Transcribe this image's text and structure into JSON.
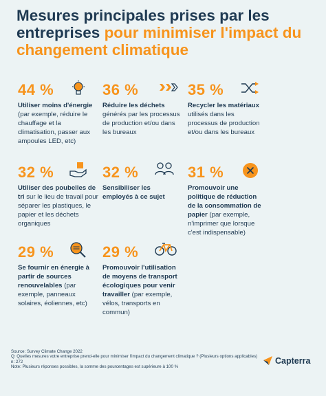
{
  "title": {
    "line1": "Mesures  principales prises par les",
    "line2_plain": "entreprises ",
    "line2_accent": "pour minimiser l'impact du",
    "line3_accent": "changement climatique"
  },
  "stats": [
    {
      "pct": "44 %",
      "icon": "light-bulb-icon",
      "bold": "Utiliser moins d'énergie",
      "rest": " (par exemple, réduire le chauffage et la climatisation, passer aux ampoules LED, etc)"
    },
    {
      "pct": "36 %",
      "icon": "arrows-forward-icon",
      "bold": "Réduire les déchets",
      "rest": " générés par les processus de production et/ou dans les bureaux"
    },
    {
      "pct": "35 %",
      "icon": "shuffle-icon",
      "bold": "Recycler les matériaux",
      "rest": " utilisés dans les processus de production et/ou dans les bureaux"
    },
    {
      "pct": "32 %",
      "icon": "hand-box-icon",
      "bold": "Utiliser des poubelles de tri",
      "rest": " sur le lieu de travail pour séparer les plastiques, le papier et les déchets organiques"
    },
    {
      "pct": "32 %",
      "icon": "people-icon",
      "bold": "Sensibiliser les employés à ce sujet",
      "rest": ""
    },
    {
      "pct": "31 %",
      "icon": "cancel-circle-icon",
      "bold": "Promouvoir une politique de réduction de la consommation de papier",
      "rest": " (par exemple, n'imprimer que lorsque c'est indispensable)"
    },
    {
      "pct": "29 %",
      "icon": "magnifier-icon",
      "bold": "Se fournir en énergie à partir de sources renouvelables",
      "rest": " (par exemple, panneaux solaires, éoliennes, etc)"
    },
    {
      "pct": "29 %",
      "icon": "bicycle-icon",
      "bold": "Promouvoir l'utilisation de moyens de transport écologiques pour venir travailler",
      "rest": " (par exemple, vélos, transports en commun)"
    }
  ],
  "footer": {
    "source": "Source: Survey Climate Change 2022",
    "question": "Q: Quelles mesures votre entreprise prend-elle pour minimiser l'impact du changement climatique ? (Plusieurs options applicables)",
    "n": "n: 272",
    "note": "Note: Plusieurs réponses possibles, la somme des pourcentages est supérieure à 100 %"
  },
  "brand": {
    "name": "Capterra"
  },
  "colors": {
    "background": "#ecf3f4",
    "accent": "#f7941d",
    "text": "#1f3a52"
  }
}
